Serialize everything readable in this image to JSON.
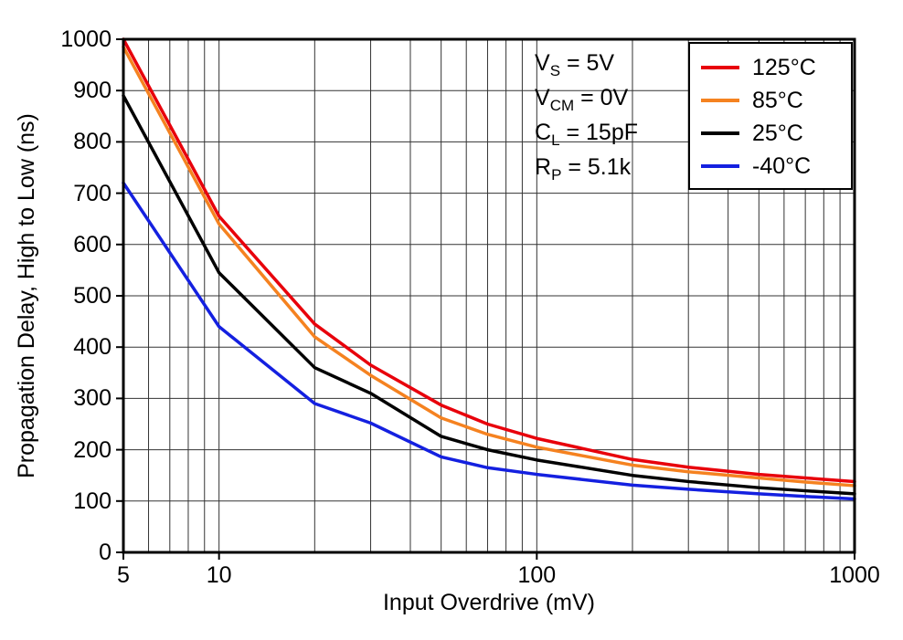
{
  "conditions": [
    {
      "base": "V",
      "sub": "S",
      "value": " = 5V"
    },
    {
      "base": "V",
      "sub": "CM",
      "value": " = 0V"
    },
    {
      "base": "C",
      "sub": "L",
      "value": " = 15pF"
    },
    {
      "base": "R",
      "sub": "P",
      "value": " = 5.1k"
    }
  ],
  "chart_data": {
    "type": "line",
    "title": "",
    "xlabel": "Input Overdrive (mV)",
    "ylabel": "Propagation Delay, High to Low (ns)",
    "x_scale": "log",
    "xlim": [
      5,
      1000
    ],
    "ylim": [
      0,
      1000
    ],
    "xticks": [
      5,
      10,
      100,
      1000
    ],
    "yticks": [
      0,
      100,
      200,
      300,
      400,
      500,
      600,
      700,
      800,
      900,
      1000
    ],
    "grid": true,
    "grid_color": "#333333",
    "frame_color": "#000000",
    "legend_position": "top-right",
    "x": [
      5,
      10,
      20,
      30,
      50,
      70,
      100,
      200,
      300,
      500,
      700,
      1000
    ],
    "series": [
      {
        "name": "125°C",
        "color": "#e8000b",
        "values": [
          1000,
          655,
          445,
          365,
          287,
          250,
          222,
          181,
          166,
          152,
          145,
          138
        ]
      },
      {
        "name": "85°C",
        "color": "#f58220",
        "values": [
          985,
          640,
          420,
          345,
          262,
          230,
          205,
          170,
          157,
          145,
          137,
          130
        ]
      },
      {
        "name": "25°C",
        "color": "#000000",
        "values": [
          890,
          545,
          360,
          310,
          226,
          200,
          180,
          150,
          138,
          126,
          120,
          114
        ]
      },
      {
        "name": "-40°C",
        "color": "#1420e0",
        "values": [
          720,
          440,
          290,
          252,
          186,
          165,
          152,
          131,
          123,
          114,
          109,
          104
        ]
      }
    ]
  }
}
